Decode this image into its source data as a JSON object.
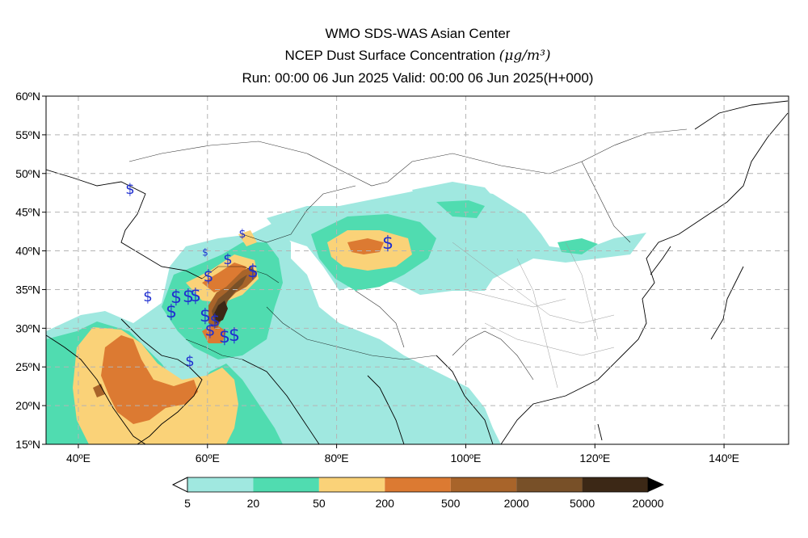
{
  "header": {
    "line1": "WMO SDS-WAS Asian Center",
    "line2_prefix": "NCEP Dust Surface Concentration ",
    "line2_unit": "(μg/m³)",
    "line3": "Run: 00:00 06 Jun 2025    Valid: 00:00 06 Jun 2025(H+000)"
  },
  "axes": {
    "lon_min": 35,
    "lon_max": 150,
    "lat_min": 15,
    "lat_max": 60,
    "lat_labels": [
      "60ºN",
      "55ºN",
      "50ºN",
      "45ºN",
      "40ºN",
      "35ºN",
      "30ºN",
      "25ºN",
      "20ºN",
      "15ºN"
    ],
    "lon_labels": [
      "40ºE",
      "60ºE",
      "80ºE",
      "100ºE",
      "120ºE",
      "140ºE"
    ],
    "grid": true
  },
  "legend": {
    "labels": [
      "5",
      "20",
      "50",
      "200",
      "500",
      "2000",
      "5000",
      "20000"
    ],
    "colors": [
      "#a0e8e0",
      "#50dcb0",
      "#fad278",
      "#dc7a32",
      "#a8642a",
      "#785028",
      "#3c2816"
    ]
  },
  "symbols": {
    "char": "$",
    "color": "#2030d0"
  }
}
